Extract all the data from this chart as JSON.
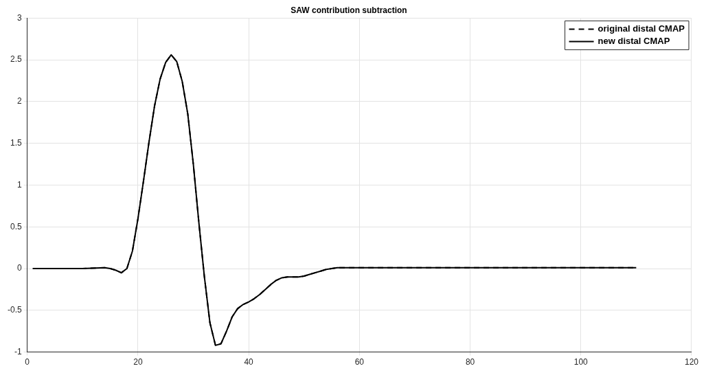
{
  "chart_data": {
    "type": "line",
    "title": "SAW contribution subtraction",
    "x": [
      1,
      5,
      10,
      14,
      15,
      16,
      17,
      18,
      19,
      20,
      21,
      22,
      23,
      24,
      25,
      26,
      27,
      28,
      29,
      30,
      31,
      32,
      33,
      34,
      35,
      36,
      37,
      38,
      39,
      40,
      41,
      42,
      43,
      44,
      45,
      46,
      47,
      48,
      49,
      50,
      51,
      52,
      53,
      54,
      55,
      56,
      60,
      70,
      80,
      90,
      100,
      110
    ],
    "series": [
      {
        "name": "original distal CMAP",
        "color": "#000000",
        "line_style": "dashed",
        "values": [
          0,
          0,
          0,
          0.01,
          0,
          -0.02,
          -0.05,
          0,
          0.21,
          0.6,
          1.05,
          1.52,
          1.95,
          2.27,
          2.47,
          2.56,
          2.48,
          2.24,
          1.85,
          1.25,
          0.55,
          -0.1,
          -0.65,
          -0.92,
          -0.9,
          -0.75,
          -0.58,
          -0.48,
          -0.43,
          -0.4,
          -0.36,
          -0.31,
          -0.25,
          -0.19,
          -0.14,
          -0.11,
          -0.1,
          -0.1,
          -0.1,
          -0.09,
          -0.07,
          -0.05,
          -0.03,
          -0.01,
          0,
          0.01,
          0.01,
          0.01,
          0.01,
          0.01,
          0.01,
          0.01
        ]
      },
      {
        "name": "new distal CMAP",
        "color": "#000000",
        "line_style": "solid",
        "values": [
          0,
          0,
          0,
          0.01,
          0,
          -0.02,
          -0.05,
          0,
          0.21,
          0.6,
          1.05,
          1.52,
          1.95,
          2.27,
          2.47,
          2.56,
          2.48,
          2.24,
          1.85,
          1.25,
          0.55,
          -0.1,
          -0.65,
          -0.92,
          -0.9,
          -0.75,
          -0.58,
          -0.48,
          -0.43,
          -0.4,
          -0.36,
          -0.31,
          -0.25,
          -0.19,
          -0.14,
          -0.11,
          -0.1,
          -0.1,
          -0.1,
          -0.09,
          -0.07,
          -0.05,
          -0.03,
          -0.01,
          0,
          0.01,
          0.01,
          0.01,
          0.01,
          0.01,
          0.01,
          0.01
        ]
      }
    ],
    "xlim": [
      0,
      120
    ],
    "xticks": [
      0,
      20,
      40,
      60,
      80,
      100,
      120
    ],
    "ylim": [
      -1,
      3
    ],
    "yticks": [
      -1,
      -0.5,
      0,
      0.5,
      1,
      1.5,
      2,
      2.5,
      3
    ],
    "grid": true,
    "legend": "top right",
    "marker": "none"
  }
}
